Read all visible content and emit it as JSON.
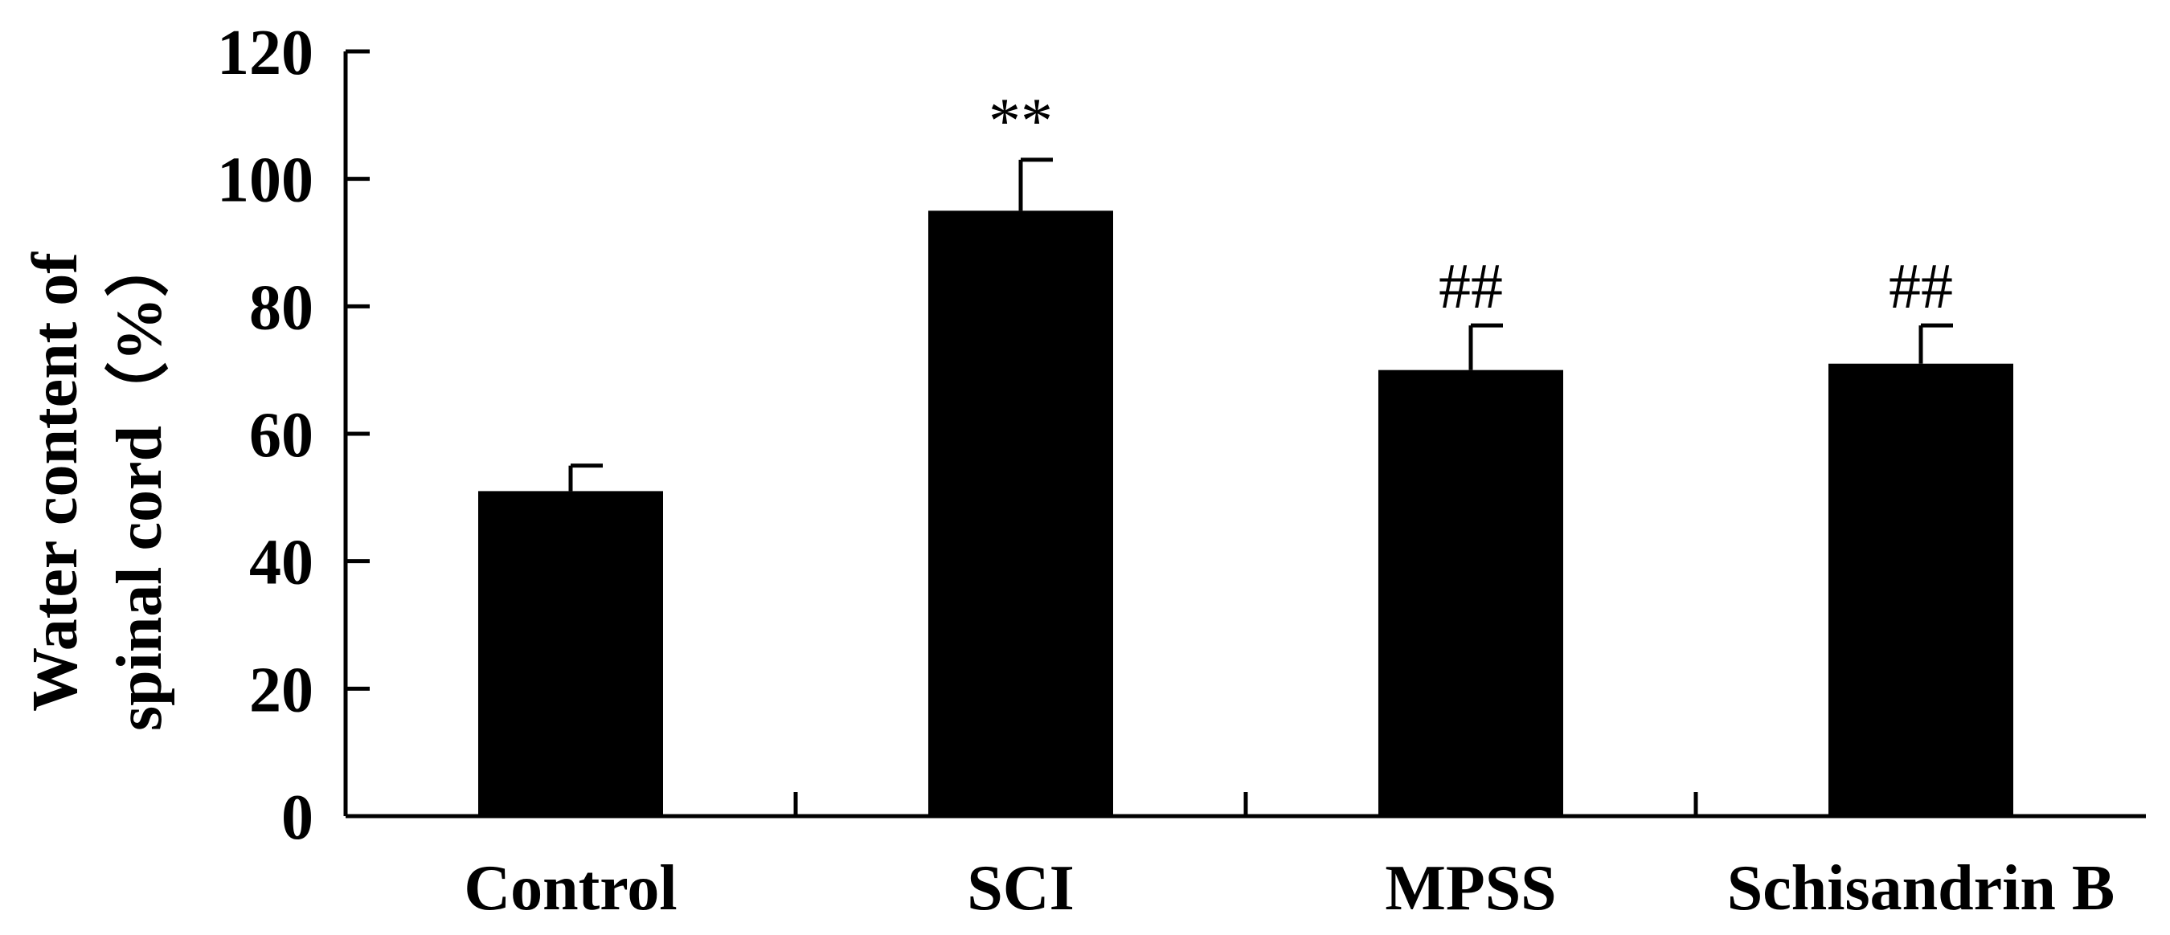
{
  "chart_data": {
    "type": "bar",
    "categories": [
      "Control",
      "SCI",
      "MPSS",
      "Schisandrin B"
    ],
    "values": [
      51,
      95,
      70,
      71
    ],
    "errors": [
      4,
      8,
      7,
      6
    ],
    "annotations": [
      "",
      "**",
      "##",
      "##"
    ],
    "ylabel_lines": [
      "Water content of",
      "spinal cord（%）"
    ],
    "ylim": [
      0,
      120
    ],
    "yticks": [
      0,
      20,
      40,
      60,
      80,
      100,
      120
    ],
    "bar_color": "#000000",
    "grid": false
  }
}
